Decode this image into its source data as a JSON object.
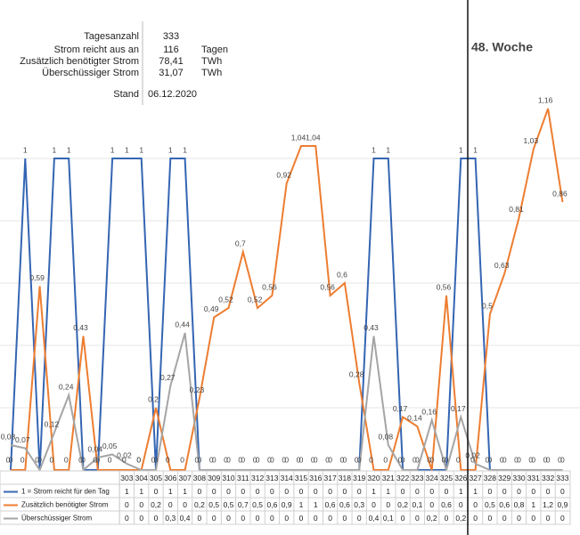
{
  "chart_data": {
    "type": "line",
    "info": {
      "rows": [
        {
          "label": "Tagesanzahl",
          "value": "333"
        },
        {
          "label": "Strom reicht aus an",
          "value": "116",
          "unit": "Tagen"
        },
        {
          "label": "Zusätzlich benötigter Strom",
          "value": "78,41",
          "unit": "TWh"
        },
        {
          "label": "Überschüssiger Strom",
          "value": "31,07",
          "unit": "TWh"
        }
      ],
      "stand": {
        "label": "Stand",
        "value": "06.12.2020"
      }
    },
    "week_label": "48. Woche",
    "categories": [
      null,
      null,
      null,
      null,
      null,
      null,
      null,
      null,
      "303",
      "304",
      "305",
      "306",
      "307",
      "308",
      "309",
      "310",
      "311",
      "312",
      "313",
      "314",
      "315",
      "316",
      "317",
      "318",
      "319",
      "320",
      "321",
      "322",
      "323",
      "324",
      "325",
      "326",
      "327",
      "328",
      "329",
      "330",
      "331",
      "332",
      "333"
    ],
    "ylim": [
      0,
      1.2
    ],
    "gridlines": [
      0.2,
      0.4,
      0.6,
      0.8,
      1
    ],
    "series": [
      {
        "name": "1 = Strom reicht für den Tag",
        "color": "#3465b3",
        "values": [
          0,
          1,
          0,
          1,
          1,
          0,
          0,
          1,
          1,
          1,
          0,
          1,
          1,
          0,
          0,
          0,
          0,
          0,
          0,
          0,
          0,
          0,
          0,
          0,
          0,
          1,
          1,
          0,
          0,
          0,
          0,
          1,
          1,
          0,
          0,
          0,
          0,
          0,
          0
        ],
        "table_values": [
          "1",
          "1",
          "0",
          "1",
          "1",
          "0",
          "0",
          "0",
          "0",
          "0",
          "0",
          "0",
          "0",
          "0",
          "0",
          "0",
          "0",
          "1",
          "1",
          "0",
          "0",
          "0",
          "0",
          "1",
          "1",
          "0",
          "0",
          "0",
          "0",
          "0",
          "0"
        ]
      },
      {
        "name": "Zusätzlich benötigter Strom",
        "color": "#ed7d31",
        "values": [
          0,
          0,
          0.59,
          0,
          0,
          0.43,
          0,
          0,
          0,
          0,
          0.2,
          0,
          0,
          0.23,
          0.49,
          0.52,
          0.7,
          0.52,
          0.56,
          0.92,
          1.04,
          1.04,
          0.56,
          0.6,
          0.28,
          0,
          0,
          0.17,
          0.14,
          0,
          0.56,
          0,
          0,
          0.5,
          0.63,
          0.81,
          1.03,
          1.16,
          0.86
        ],
        "value_labels": [
          "0",
          "0",
          "0,59",
          "0",
          "0",
          "0,43",
          "0",
          "0",
          "0",
          "0",
          "0,2",
          "0",
          "0",
          "0,23",
          "0,49",
          "0,52",
          "0,7",
          "0,52",
          "0,56",
          "0,92",
          "1,04",
          "1,04",
          "0,56",
          "0,6",
          "0,28",
          "0",
          "0",
          "0,17",
          "0,14",
          "0",
          "0,56",
          "0",
          "0",
          "0,5",
          "0,63",
          "0,81",
          "1,03",
          "1,16",
          "0,86"
        ],
        "table_values": [
          "0",
          "0",
          "0,2",
          "0",
          "0",
          "0,2",
          "0,5",
          "0,5",
          "0,7",
          "0,5",
          "0,6",
          "0,9",
          "1",
          "1",
          "0,6",
          "0,6",
          "0,3",
          "0",
          "0",
          "0,2",
          "0,1",
          "0",
          "0,6",
          "0",
          "0",
          "0,5",
          "0,6",
          "0,8",
          "1",
          "1,2",
          "0,9"
        ]
      },
      {
        "name": "Überschüssiger Strom",
        "color": "#a5a5a5",
        "values": [
          0.08,
          0.07,
          0,
          0.12,
          0.24,
          0,
          0.04,
          0.05,
          0.02,
          0,
          0,
          0.27,
          0.44,
          0,
          0,
          0,
          0,
          0,
          0,
          0,
          0,
          0,
          0,
          0,
          0,
          0.43,
          0.08,
          0,
          0,
          0.16,
          0,
          0.17,
          0.02,
          0,
          0,
          0,
          0,
          0,
          0
        ],
        "value_labels": [
          "0,08",
          "0,07",
          "0",
          "0,12",
          "0,24",
          "0",
          "0,04",
          "0,05",
          "0,02",
          "0",
          "0",
          "0,27",
          "0,44",
          "0",
          "0",
          "0",
          "0",
          "0",
          "0",
          "0",
          "0",
          "0",
          "0",
          "0",
          "0",
          "0,43",
          "0,08",
          "0",
          "0",
          "0,16",
          "0",
          "0,17",
          "0,02",
          "0",
          "0",
          "0",
          "0",
          "0",
          "0"
        ],
        "table_values": [
          "0",
          "0",
          "0",
          "0,3",
          "0,4",
          "0",
          "0",
          "0",
          "0",
          "0",
          "0",
          "0",
          "0",
          "0",
          "0",
          "0",
          "0",
          "0,4",
          "0,1",
          "0",
          "0",
          "0,2",
          "0",
          "0,2",
          "0",
          "0",
          "0",
          "0",
          "0",
          "0",
          "0"
        ]
      }
    ]
  }
}
